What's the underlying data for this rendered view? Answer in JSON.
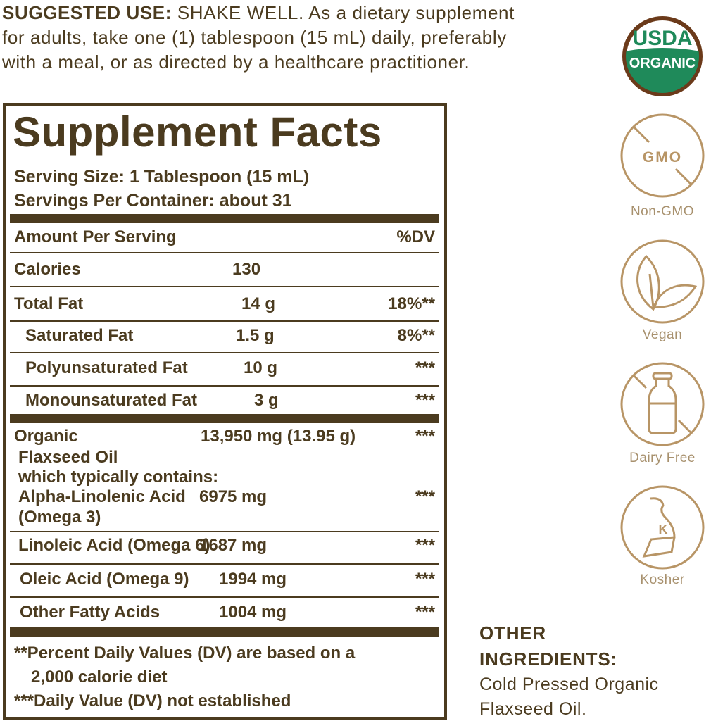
{
  "suggested_use": {
    "label": "SUGGESTED USE:",
    "line1": " SHAKE WELL. As a dietary supplement",
    "line2": "for adults, take one (1) tablespoon (15 mL) daily, preferably",
    "line3": "with a meal, or as directed by a healthcare practitioner."
  },
  "facts": {
    "title": "Supplement Facts",
    "serving_size": "Serving Size: 1 Tablespoon (15 mL)",
    "servings_per_container": "Servings Per Container: about 31",
    "header_amount": "Amount Per Serving",
    "header_dv": "%DV",
    "rows": [
      {
        "name": "Calories",
        "amount": "130",
        "dv": ""
      },
      {
        "name": "Total Fat",
        "amount": "14 g",
        "dv": "18%**"
      },
      {
        "name": "Saturated Fat",
        "amount": "1.5 g",
        "dv": "8%**"
      },
      {
        "name": "Polyunsaturated Fat",
        "amount": "10 g",
        "dv": "***"
      },
      {
        "name": "Monounsaturated Fat",
        "amount": "3 g",
        "dv": "***"
      },
      {
        "name": "Organic",
        "amount": "13,950 mg (13.95 g)",
        "dv": "***"
      },
      {
        "name": "Flaxseed Oil",
        "amount": "",
        "dv": ""
      },
      {
        "name": "which typically contains:",
        "amount": "",
        "dv": ""
      },
      {
        "name": "Alpha-Linolenic Acid",
        "amount": "6975 mg",
        "dv": "***"
      },
      {
        "name": "(Omega 3)",
        "amount": "",
        "dv": ""
      },
      {
        "name": "Linoleic Acid (Omega 6)",
        "amount": "1687 mg",
        "dv": "***"
      },
      {
        "name": "Oleic Acid (Omega 9)",
        "amount": "1994 mg",
        "dv": "***"
      },
      {
        "name": "Other Fatty Acids",
        "amount": "1004 mg",
        "dv": "***"
      }
    ],
    "footnote1a": "**Percent Daily Values (DV) are based on a",
    "footnote1b": "2,000 calorie diet",
    "footnote2": "***Daily Value (DV) not established"
  },
  "badges": {
    "usda_top": "USDA",
    "usda_bottom": "ORGANIC",
    "gmo_text": "GMO",
    "kosher_letter": "K",
    "labels": [
      "Non-GMO",
      "Vegan",
      "Dairy Free",
      "Kosher"
    ],
    "icons": [
      "usda-organic-seal",
      "non-gmo-icon",
      "vegan-leaf-icon",
      "dairy-free-bottle-icon",
      "kosher-icon"
    ]
  },
  "other_ingredients": {
    "heading1": "OTHER",
    "heading2": "INGREDIENTS:",
    "line1": "Cold Pressed Organic",
    "line2": "Flaxseed Oil."
  },
  "colors": {
    "text": "#4b3b1f",
    "icon": "#b89566",
    "usda_green": "#1f8a5a",
    "usda_brown": "#6b3a1a"
  }
}
